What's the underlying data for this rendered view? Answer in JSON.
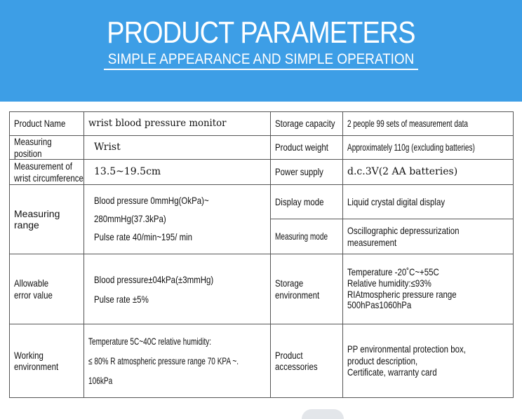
{
  "header": {
    "title": "PRODUCT PARAMETERS",
    "subtitle": "SIMPLE APPEARANCE AND SIMPLE OPERATION"
  },
  "rows": {
    "product_name": {
      "label": "Product Name",
      "value": "wrist blood pressure monitor"
    },
    "storage_capacity": {
      "label": "Storage capacity",
      "value": "2 people 99 sets of measurement data"
    },
    "measuring_position": {
      "label_lines": [
        "Measuring",
        "position"
      ],
      "value": "Wrist"
    },
    "product_weight": {
      "label": "Product weight",
      "value": "Approximately 110g (excluding batteries)"
    },
    "wrist_circumference": {
      "label_lines": [
        "Measurement of",
        "wrist circumference"
      ],
      "value": "13.5~19.5cm"
    },
    "power_supply": {
      "label": "Power supply",
      "value": "d.c.3V(2 AA batteries)"
    },
    "measuring_range": {
      "label_lines": [
        "Measuring",
        "range"
      ],
      "value_lines": [
        "Blood pressure 0mmHg(OkPa)~",
        "280mmHg(37.3kPa)",
        "Pulse rate 40/min~195/ min"
      ]
    },
    "display_mode": {
      "label": "Display mode",
      "value": "Liquid crystal digital display"
    },
    "measuring_mode": {
      "label": "Measuring mode",
      "value_lines": [
        "Oscillographic depressurization",
        "measurement"
      ]
    },
    "allowable_error": {
      "label_lines": [
        "Allowable",
        "error value"
      ],
      "value_lines": [
        "Blood pressure±04kPa(±3mmHg)",
        "Pulse rate ±5%"
      ]
    },
    "storage_environment": {
      "label_lines": [
        "Storage",
        "environment"
      ],
      "value_lines": [
        "Temperature -20˚C~+55C",
        "Relative humidity:≤93%",
        "RIAtmospheric pressure range",
        "500hPas1060hPa"
      ]
    },
    "working_environment": {
      "label_lines": [
        "Working",
        "environment"
      ],
      "value_lines": [
        "Temperature 5C~40C relative humidity:",
        "≤ 80% R atmospheric pressure range 70 KPA ~.",
        "106kPa"
      ]
    },
    "product_accessories": {
      "label_lines": [
        "Product",
        "accessories"
      ],
      "value_lines": [
        "PP environmental protection box,",
        "product description,",
        "Certificate, warranty card"
      ]
    }
  }
}
